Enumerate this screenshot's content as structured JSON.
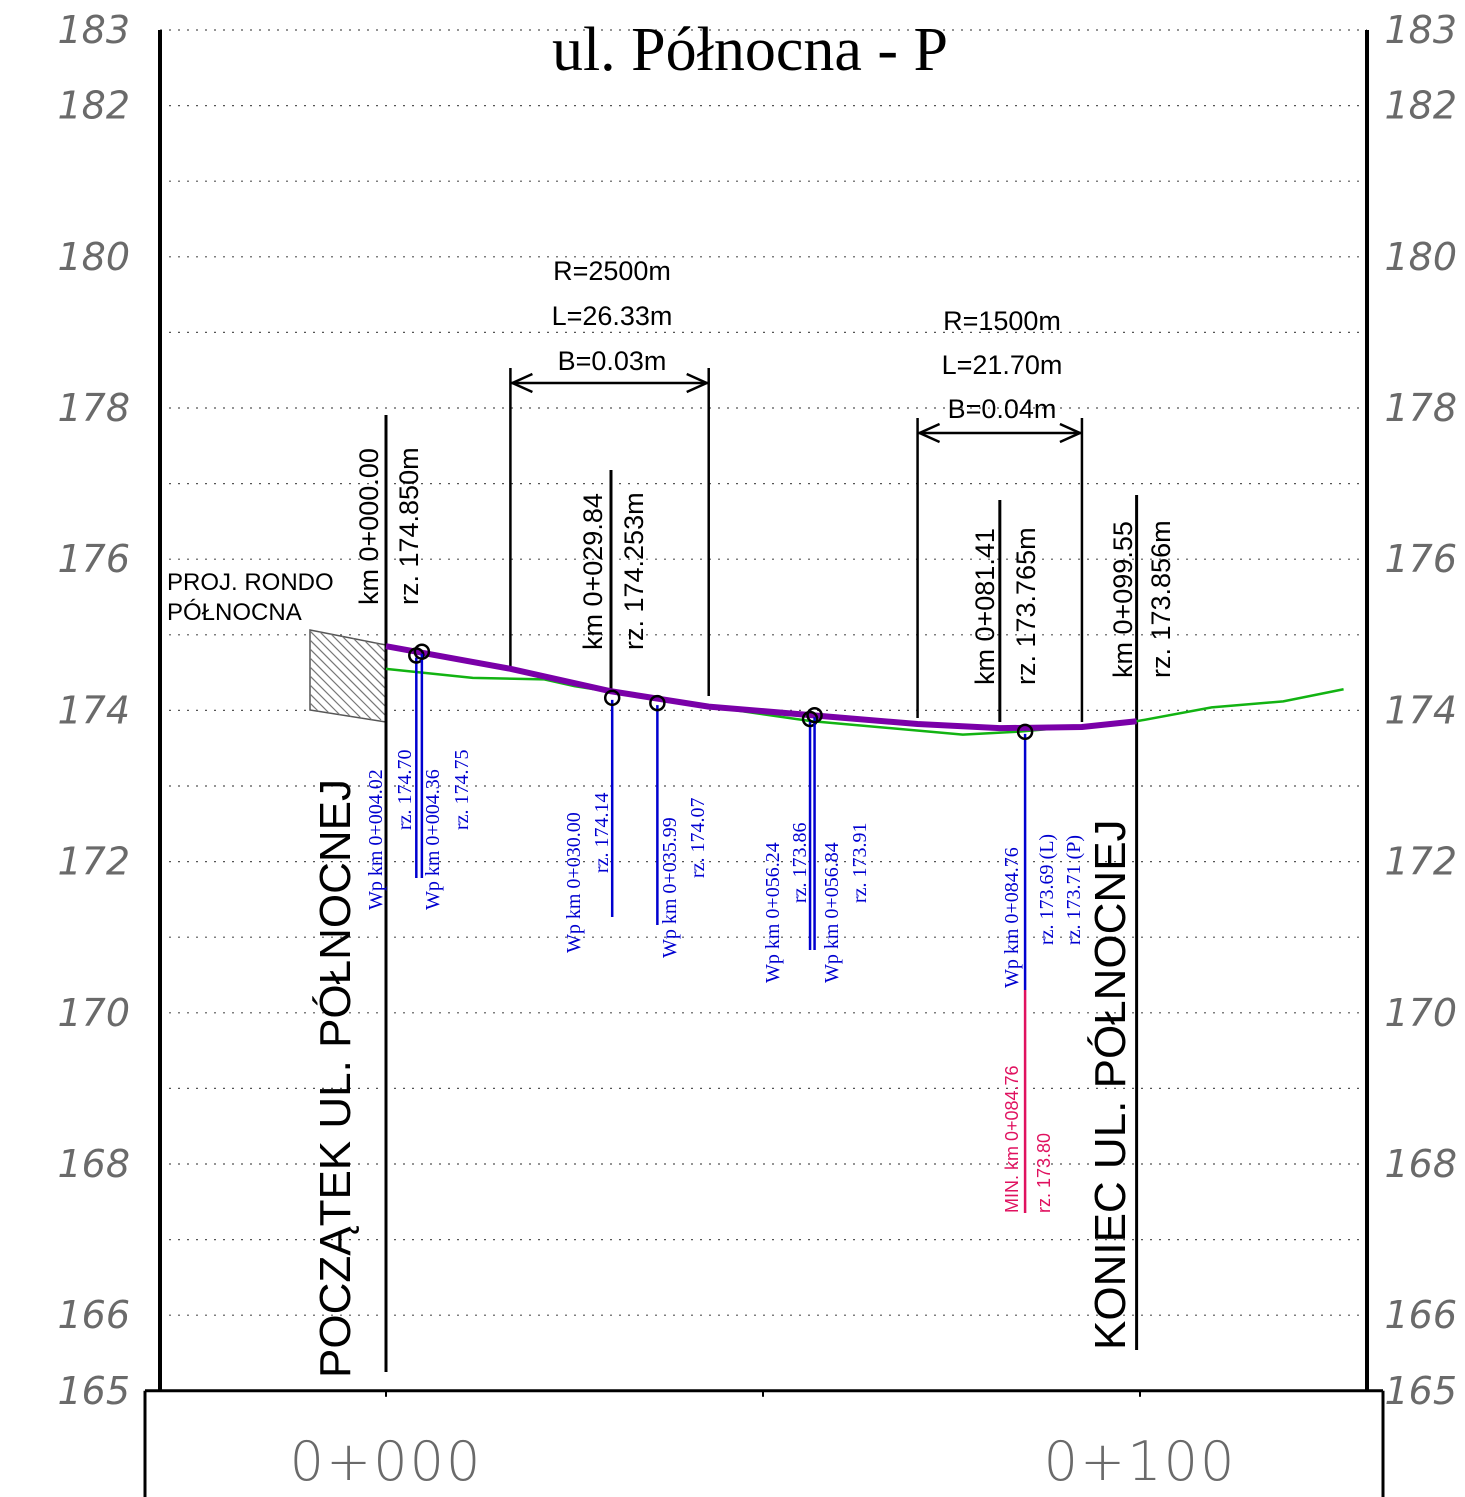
{
  "title": "ul. Północna - P",
  "elevation_labels": [
    "183",
    "182",
    "180",
    "178",
    "176",
    "174",
    "172",
    "170",
    "168",
    "166",
    "165"
  ],
  "stations": [
    "0+000",
    "0+100"
  ],
  "begin_label": "POCZĄTEK UL. PÓŁNOCNEJ",
  "end_label": "KONIEC UL. PÓŁNOCNEJ",
  "rondo_label": [
    "PROJ. RONDO",
    "PÓŁNOCNA"
  ],
  "curves": [
    {
      "r": "R=2500m",
      "l": "L=26.33m",
      "b": "B=0.03m",
      "km_from": 16.5,
      "km_to": 42.8
    },
    {
      "r": "R=1500m",
      "l": "L=21.70m",
      "b": "B=0.04m",
      "km_from": 70.5,
      "km_to": 92.3
    }
  ],
  "points": [
    {
      "km_label": "km 0+000.00",
      "rz_label": "rz. 174.850m",
      "km": 0.0
    },
    {
      "km_label": "km 0+029.84",
      "rz_label": "rz. 174.253m",
      "km": 29.84
    },
    {
      "km_label": "km 0+081.41",
      "rz_label": "rz. 173.765m",
      "km": 81.41
    },
    {
      "km_label": "km 0+099.55",
      "rz_label": "rz. 173.856m",
      "km": 99.55
    }
  ],
  "wp_points": [
    {
      "line1": "Wp  km 0+004.02",
      "line2": "rz. 174.70"
    },
    {
      "line1": "Wp  km 0+004.36",
      "line2": "rz. 174.75"
    },
    {
      "line1": "Wp  km 0+030.00",
      "line2": "rz. 174.14"
    },
    {
      "line1": "Wp  km 0+035.99",
      "line2": "rz. 174.07"
    },
    {
      "line1": "Wp  km 0+056.24",
      "line2": "rz. 173.86"
    },
    {
      "line1": "Wp  km 0+056.84",
      "line2": "rz. 173.91"
    },
    {
      "line1": "Wp  km 0+084.76",
      "line2": "rz. 173.69 (L)",
      "line3": "rz. 173.71 (P)"
    }
  ],
  "min_point": {
    "line1": "MIN. km 0+084.76",
    "line2": "rz. 173.80"
  },
  "colors": {
    "design": "#7a00a8",
    "terrain": "#12b312",
    "wells": "#0000d0",
    "min": "#e0115f",
    "grid": "#555555"
  },
  "chart_data": {
    "type": "line",
    "title": "ul. Północna - P",
    "xlabel": "",
    "ylabel": "",
    "xlim": [
      -10,
      130
    ],
    "ylim": [
      165,
      183
    ],
    "series": [
      {
        "x": [
          0.0,
          16.5,
          29.84,
          42.8,
          70.5,
          81.41,
          92.3,
          99.55
        ],
        "y": [
          174.85,
          174.55,
          174.253,
          174.05,
          173.82,
          173.765,
          173.78,
          173.856
        ]
      },
      {
        "x": [
          0.0,
          11.5,
          21.0,
          25.0,
          35.99,
          56.24,
          76.5,
          84.0,
          99.55,
          109.5,
          119.0,
          127.0
        ],
        "y": [
          174.55,
          174.43,
          174.41,
          174.32,
          174.15,
          173.86,
          173.68,
          173.72,
          173.856,
          174.04,
          174.12,
          174.28
        ]
      }
    ],
    "wp_km": [
      4.02,
      4.36,
      30.0,
      35.99,
      56.24,
      56.84,
      84.76
    ],
    "wp_rz": [
      174.7,
      174.75,
      174.14,
      174.07,
      173.86,
      173.91,
      173.69
    ],
    "grid": "dotted"
  }
}
